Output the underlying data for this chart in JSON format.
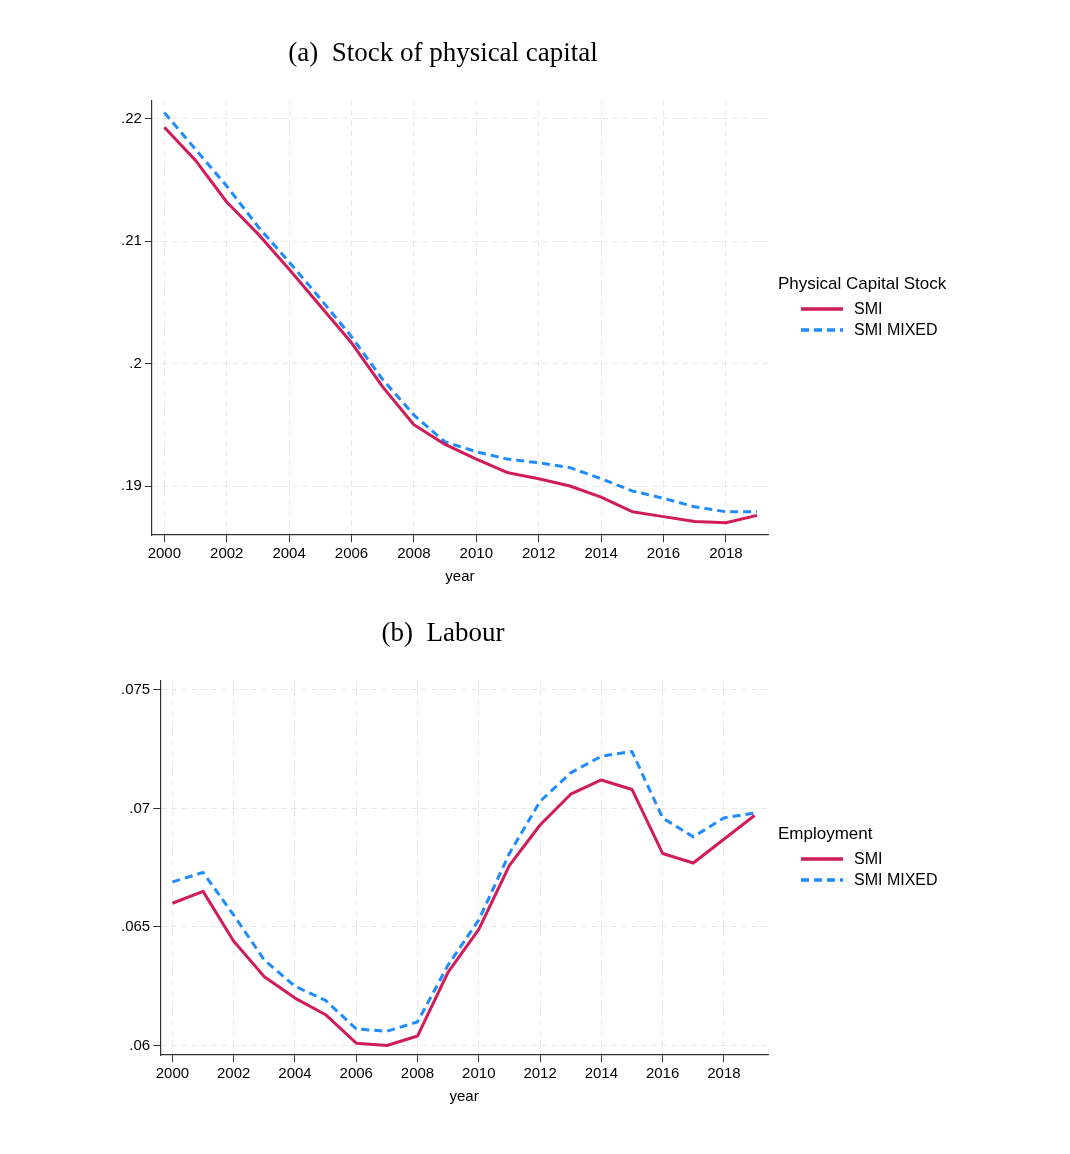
{
  "chart_data": [
    {
      "type": "line",
      "title": "(a)  Stock of physical capital",
      "xlabel": "year",
      "legend_title": "Physical Capital Stock",
      "legend": "right",
      "grid": true,
      "x": [
        2000,
        2001,
        2002,
        2003,
        2004,
        2005,
        2006,
        2007,
        2008,
        2009,
        2010,
        2011,
        2012,
        2013,
        2014,
        2015,
        2016,
        2017,
        2018,
        2019
      ],
      "xlim": [
        1999.6,
        2019.35
      ],
      "xticks": [
        2000,
        2002,
        2004,
        2006,
        2008,
        2010,
        2012,
        2014,
        2016,
        2018
      ],
      "ylim": [
        0.186,
        0.2215
      ],
      "yticks": [
        {
          "value": 0.19,
          "label": ".19"
        },
        {
          "value": 0.2,
          "label": ".2"
        },
        {
          "value": 0.21,
          "label": ".21"
        },
        {
          "value": 0.22,
          "label": ".22"
        }
      ],
      "series": [
        {
          "name": "SMI",
          "color": "#d01c5b",
          "line_style": "solid",
          "values": [
            0.2193,
            0.2166,
            0.2132,
            0.2106,
            0.2077,
            0.2047,
            0.2017,
            0.1981,
            0.195,
            0.1934,
            0.1922,
            0.1911,
            0.1906,
            0.19,
            0.1891,
            0.1879,
            0.1875,
            0.1871,
            0.187,
            0.1876
          ]
        },
        {
          "name": "SMI MIXED",
          "color": "#1e8cff",
          "line_style": "dashed",
          "values": [
            0.2205,
            0.2175,
            0.2145,
            0.2112,
            0.2083,
            0.2053,
            0.2022,
            0.1987,
            0.1958,
            0.1936,
            0.1928,
            0.1922,
            0.1919,
            0.1915,
            0.1906,
            0.1896,
            0.189,
            0.1883,
            0.1879,
            0.1879
          ]
        }
      ]
    },
    {
      "type": "line",
      "title": "(b)  Labour",
      "xlabel": "year",
      "legend_title": "Employment",
      "legend": "right",
      "grid": true,
      "x": [
        2000,
        2001,
        2002,
        2003,
        2004,
        2005,
        2006,
        2007,
        2008,
        2009,
        2010,
        2011,
        2012,
        2013,
        2014,
        2015,
        2016,
        2017,
        2018,
        2019
      ],
      "xlim": [
        1999.6,
        2019.44
      ],
      "xticks": [
        2000,
        2002,
        2004,
        2006,
        2008,
        2010,
        2012,
        2014,
        2016,
        2018
      ],
      "ylim": [
        0.0596,
        0.0754
      ],
      "yticks": [
        {
          "value": 0.06,
          "label": ".06"
        },
        {
          "value": 0.065,
          "label": ".065"
        },
        {
          "value": 0.07,
          "label": ".07"
        },
        {
          "value": 0.075,
          "label": ".075"
        }
      ],
      "series": [
        {
          "name": "SMI",
          "color": "#d01c5b",
          "line_style": "solid",
          "values": [
            0.066,
            0.0665,
            0.0644,
            0.0629,
            0.062,
            0.0613,
            0.0601,
            0.06,
            0.0604,
            0.0631,
            0.0649,
            0.0676,
            0.0693,
            0.0706,
            0.0712,
            0.0708,
            0.0681,
            0.0677,
            0.0687,
            0.0697
          ]
        },
        {
          "name": "SMI MIXED",
          "color": "#1e8cff",
          "line_style": "dashed",
          "values": [
            0.0669,
            0.0673,
            0.0655,
            0.0636,
            0.0625,
            0.0619,
            0.0607,
            0.0606,
            0.061,
            0.0634,
            0.0653,
            0.0681,
            0.0703,
            0.0715,
            0.0722,
            0.0724,
            0.0696,
            0.0688,
            0.0696,
            0.0698
          ]
        }
      ]
    }
  ]
}
